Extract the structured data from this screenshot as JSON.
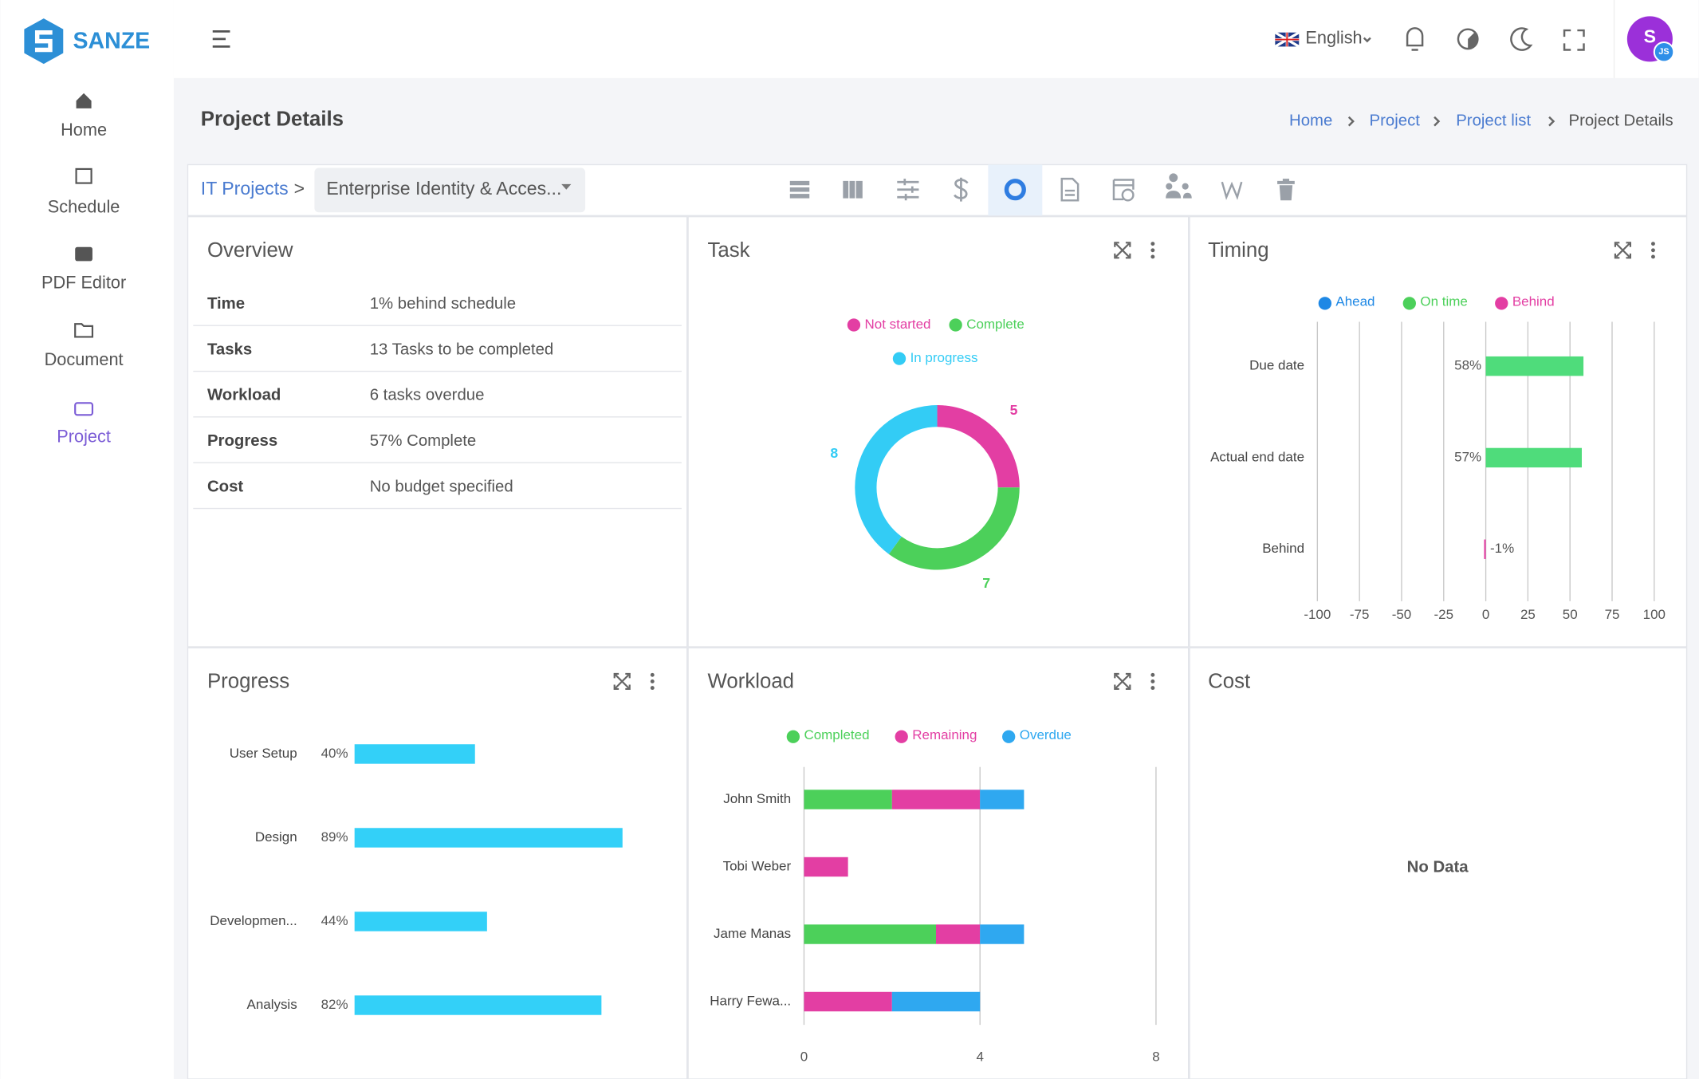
{
  "brand": "SANZE",
  "sidebar": [
    "Home",
    "Schedule",
    "PDF Editor",
    "Document",
    "Project"
  ],
  "header": {
    "language": "English",
    "avatar": "S",
    "avatar_badge": "JS"
  },
  "page_title": "Project Details",
  "breadcrumb": [
    "Home",
    "Project",
    "Project list",
    "Project Details"
  ],
  "project_bar": {
    "group": "IT Projects",
    "separator": ">",
    "project": "Enterprise Identity & Acces..."
  },
  "overview": {
    "title": "Overview",
    "rows": [
      {
        "label": "Time",
        "value": "1% behind schedule"
      },
      {
        "label": "Tasks",
        "value": "13 Tasks to be completed"
      },
      {
        "label": "Workload",
        "value": "6 tasks overdue"
      },
      {
        "label": "Progress",
        "value": "57% Complete"
      },
      {
        "label": "Cost",
        "value": "No budget specified"
      }
    ]
  },
  "task": {
    "type": "donut",
    "title": "Task",
    "series": [
      {
        "name": "Not started",
        "color": "#e33ea3",
        "value": 5
      },
      {
        "name": "Complete",
        "color": "#4cd05a",
        "value": 7
      },
      {
        "name": "In progress",
        "color": "#33ccf5",
        "value": 8
      }
    ]
  },
  "timing": {
    "type": "bar",
    "title": "Timing",
    "legend": [
      {
        "name": "Ahead",
        "color": "#1e88e5"
      },
      {
        "name": "On time",
        "color": "#4cd05a"
      },
      {
        "name": "Behind",
        "color": "#e33ea3"
      }
    ],
    "categories": [
      "Due date",
      "Actual end date",
      "Behind"
    ],
    "values": [
      58,
      57,
      -1
    ],
    "value_labels": [
      "58%",
      "57%",
      "-1%"
    ],
    "colors": [
      "#4fdc7b",
      "#4fdc7b",
      "#e33ea3"
    ],
    "xlim": [
      -100,
      100
    ],
    "xticks": [
      -100,
      -75,
      -50,
      -25,
      0,
      25,
      50,
      75,
      100
    ]
  },
  "progress": {
    "type": "bar",
    "title": "Progress",
    "categories": [
      "User Setup",
      "Design",
      "Developmen...",
      "Analysis"
    ],
    "values": [
      40,
      89,
      44,
      82
    ],
    "value_labels": [
      "40%",
      "89%",
      "44%",
      "82%"
    ],
    "color": "#33d0f8",
    "xlim": [
      0,
      100
    ]
  },
  "workload": {
    "type": "stacked-bar",
    "title": "Workload",
    "categories": [
      "John Smith",
      "Tobi Weber",
      "Jame Manas",
      "Harry Fewa..."
    ],
    "series": [
      {
        "name": "Completed",
        "color": "#4cd05a",
        "values": [
          2,
          0,
          3,
          0
        ]
      },
      {
        "name": "Remaining",
        "color": "#e33ea3",
        "values": [
          2,
          1,
          1,
          2
        ]
      },
      {
        "name": "Overdue",
        "color": "#2fa8f0",
        "values": [
          1,
          0,
          1,
          2
        ]
      }
    ],
    "xlim": [
      0,
      8
    ],
    "xticks": [
      0,
      4,
      8
    ]
  },
  "cost": {
    "title": "Cost",
    "empty": "No Data"
  }
}
